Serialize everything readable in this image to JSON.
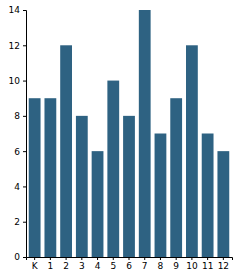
{
  "chart_data": {
    "type": "bar",
    "categories": [
      "K",
      "1",
      "2",
      "3",
      "4",
      "5",
      "6",
      "7",
      "8",
      "9",
      "10",
      "11",
      "12"
    ],
    "values": [
      9,
      9,
      12,
      8,
      6,
      10,
      8,
      14,
      7,
      9,
      12,
      7,
      6
    ],
    "color": "#2e6282",
    "ylim": [
      0,
      14
    ],
    "yticks": [
      0,
      2,
      4,
      6,
      8,
      10,
      12,
      14
    ],
    "grid": false
  }
}
